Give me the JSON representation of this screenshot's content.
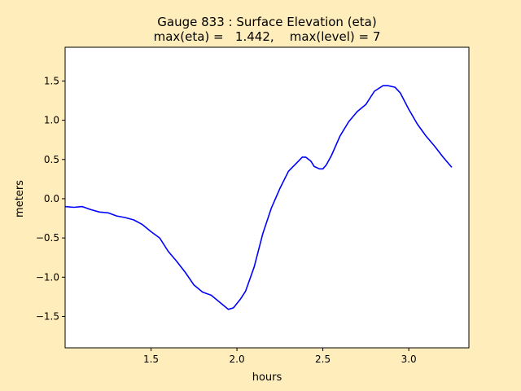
{
  "figure": {
    "background": "#ffedbb"
  },
  "chart_data": {
    "type": "line",
    "title": "Gauge 833 : Surface Elevation (eta)",
    "subtitle": "max(eta) =   1.442,    max(level) = 7",
    "xlabel": "hours",
    "ylabel": "meters",
    "xlim": [
      1.0,
      3.35
    ],
    "ylim": [
      -1.9,
      1.93
    ],
    "xticks": [
      1.5,
      2.0,
      2.5,
      3.0
    ],
    "xtick_labels": [
      "1.5",
      "2.0",
      "2.5",
      "3.0"
    ],
    "yticks": [
      -1.5,
      -1.0,
      -0.5,
      0.0,
      0.5,
      1.0,
      1.5
    ],
    "ytick_labels": [
      "−1.5",
      "−1.0",
      "−0.5",
      "0.0",
      "0.5",
      "1.0",
      "1.5"
    ],
    "grid": false,
    "legend": null,
    "line_color": "#0000ff",
    "x": [
      1.0,
      1.05,
      1.1,
      1.15,
      1.2,
      1.25,
      1.3,
      1.35,
      1.4,
      1.45,
      1.5,
      1.55,
      1.6,
      1.65,
      1.7,
      1.75,
      1.8,
      1.85,
      1.9,
      1.95,
      1.98,
      2.02,
      2.05,
      2.1,
      2.15,
      2.2,
      2.25,
      2.3,
      2.35,
      2.38,
      2.4,
      2.43,
      2.45,
      2.48,
      2.5,
      2.52,
      2.55,
      2.6,
      2.65,
      2.7,
      2.75,
      2.8,
      2.85,
      2.88,
      2.92,
      2.95,
      3.0,
      3.05,
      3.1,
      3.15,
      3.2,
      3.25
    ],
    "y": [
      -0.1,
      -0.11,
      -0.1,
      -0.14,
      -0.17,
      -0.18,
      -0.22,
      -0.24,
      -0.27,
      -0.33,
      -0.42,
      -0.5,
      -0.67,
      -0.8,
      -0.94,
      -1.1,
      -1.19,
      -1.23,
      -1.32,
      -1.41,
      -1.39,
      -1.28,
      -1.18,
      -0.87,
      -0.45,
      -0.12,
      0.13,
      0.35,
      0.46,
      0.53,
      0.53,
      0.48,
      0.41,
      0.38,
      0.38,
      0.43,
      0.55,
      0.8,
      0.98,
      1.11,
      1.2,
      1.37,
      1.44,
      1.44,
      1.42,
      1.35,
      1.14,
      0.95,
      0.8,
      0.67,
      0.53,
      0.4
    ]
  }
}
